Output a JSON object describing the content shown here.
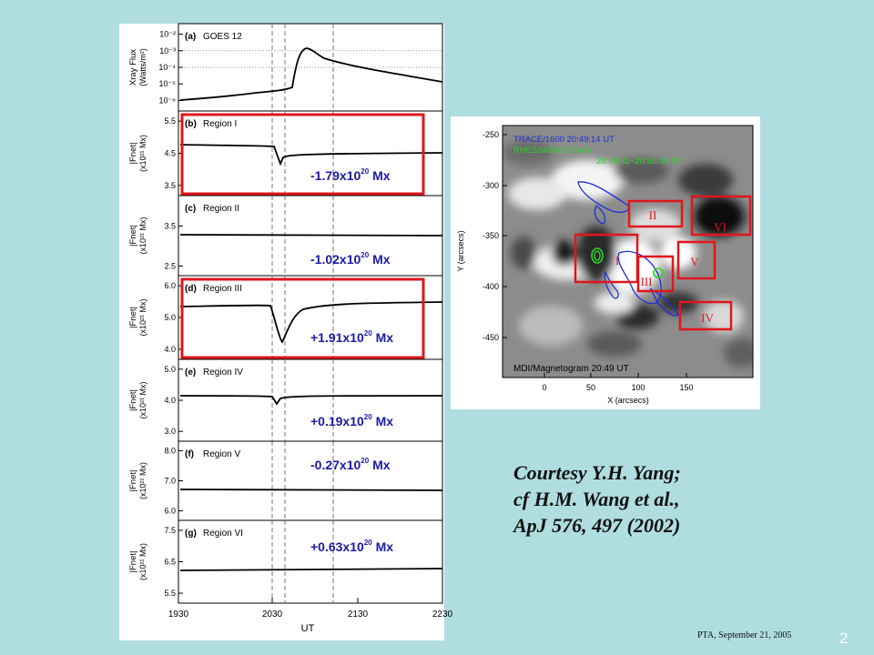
{
  "left_figure": {
    "panels": [
      {
        "tag": "(a)",
        "name": "GOES 12",
        "ylabel_line1": "Xray Flux",
        "ylabel_line2": "(Watts/m²)",
        "yticks": [
          "10⁻²",
          "10⁻³",
          "10⁻⁴",
          "10⁻⁵",
          "10⁻⁶"
        ]
      },
      {
        "tag": "(b)",
        "name": "Region I",
        "ylabel_line1": "|Fnet|",
        "ylabel_line2": "(x10²¹ Mx)",
        "yticks": [
          "5.5",
          "4.5",
          "3.5"
        ],
        "annotation_value": "-1.79x10",
        "annotation_exp": "20",
        "annotation_unit": " Mx",
        "highlighted": true
      },
      {
        "tag": "(c)",
        "name": "Region II",
        "ylabel_line1": "|Fnet|",
        "ylabel_line2": "(x10²¹ Mx)",
        "yticks": [
          "3.5",
          "2.5"
        ],
        "annotation_value": "-1.02x10",
        "annotation_exp": "20",
        "annotation_unit": " Mx",
        "highlighted": false
      },
      {
        "tag": "(d)",
        "name": "Region III",
        "ylabel_line1": "|Fnet|",
        "ylabel_line2": "(x10²¹ Mx)",
        "yticks": [
          "6.0",
          "5.0",
          "4.0"
        ],
        "annotation_value": "+1.91x10",
        "annotation_exp": "20",
        "annotation_unit": " Mx",
        "highlighted": true
      },
      {
        "tag": "(e)",
        "name": "Region IV",
        "ylabel_line1": "|Fnet|",
        "ylabel_line2": "(x10²¹ Mx)",
        "yticks": [
          "5.0",
          "4.0",
          "3.0"
        ],
        "annotation_value": "+0.19x10",
        "annotation_exp": "20",
        "annotation_unit": " Mx",
        "highlighted": false
      },
      {
        "tag": "(f)",
        "name": "Region V",
        "ylabel_line1": "|Fnet|",
        "ylabel_line2": "(x10²¹ Mx)",
        "yticks": [
          "8.0",
          "7.0",
          "6.0"
        ],
        "annotation_value": "-0.27x10",
        "annotation_exp": "20",
        "annotation_unit": " Mx",
        "highlighted": false
      },
      {
        "tag": "(g)",
        "name": "Region VI",
        "ylabel_line1": "|Fnet|",
        "ylabel_line2": "(x10²¹ Mx)",
        "yticks": [
          "7.5",
          "6.5",
          "5.5"
        ],
        "annotation_value": "+0.63x10",
        "annotation_exp": "20",
        "annotation_unit": " Mx",
        "highlighted": false
      }
    ],
    "xticks": [
      "1930",
      "2030",
      "2130",
      "2230"
    ],
    "xlabel": "UT"
  },
  "right_figure": {
    "legend_line1": "TRACE/1600   20:49:14 UT",
    "legend_line2": "RHESSI/50-100 keV",
    "legend_line3": "20:49:32~20:50:33 UT",
    "bottom_label": "MDI/Magnetogram  20:49 UT",
    "ylabel": "Y (arcsecs)",
    "xlabel": "X (arcsecs)",
    "yticks": [
      "-250",
      "-300",
      "-350",
      "-400",
      "-450"
    ],
    "xticks": [
      "0",
      "50",
      "100",
      "150"
    ],
    "regions": [
      "I",
      "II",
      "III",
      "IV",
      "V",
      "VI"
    ],
    "colors": {
      "trace": "#1f2fd6",
      "rhessi": "#2bd42b",
      "box": "#e0161c"
    }
  },
  "courtesy": {
    "line1": "Courtesy Y.H. Yang;",
    "line2": "cf H.M. Wang et al.,",
    "line3": "ApJ 576, 497 (2002)"
  },
  "footer": "PTA, September 21, 2005",
  "page_number": "2"
}
